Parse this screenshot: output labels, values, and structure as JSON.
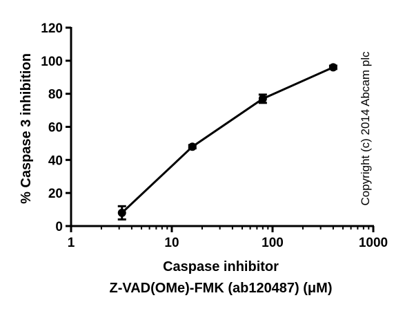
{
  "chart_data": {
    "type": "scatter",
    "title": "",
    "xlabel_line1": "Caspase inhibitor",
    "xlabel_line2": "Z-VAD(OMe)-FMK (ab120487) (μM)",
    "ylabel": "% Caspase 3 inhibition",
    "x_scale": "log",
    "xlim": [
      1,
      1000
    ],
    "ylim": [
      0,
      120
    ],
    "x_ticks": [
      1,
      10,
      100,
      1000
    ],
    "x_tick_labels": [
      "1",
      "10",
      "100",
      "1000"
    ],
    "y_ticks": [
      0,
      20,
      40,
      60,
      80,
      100,
      120
    ],
    "y_tick_labels": [
      "0",
      "20",
      "40",
      "60",
      "80",
      "100",
      "120"
    ],
    "grid": false,
    "line_connected": true,
    "series": [
      {
        "x": [
          3.2,
          16,
          80,
          400
        ],
        "y": [
          8,
          48,
          77,
          96
        ],
        "error": [
          4,
          1,
          2.5,
          1
        ]
      }
    ]
  },
  "annotations": {
    "copyright": "Copyright (c) 2014 Abcam plc"
  },
  "colors": {
    "axis": "#000000",
    "series": "#000000",
    "background": "#ffffff"
  }
}
